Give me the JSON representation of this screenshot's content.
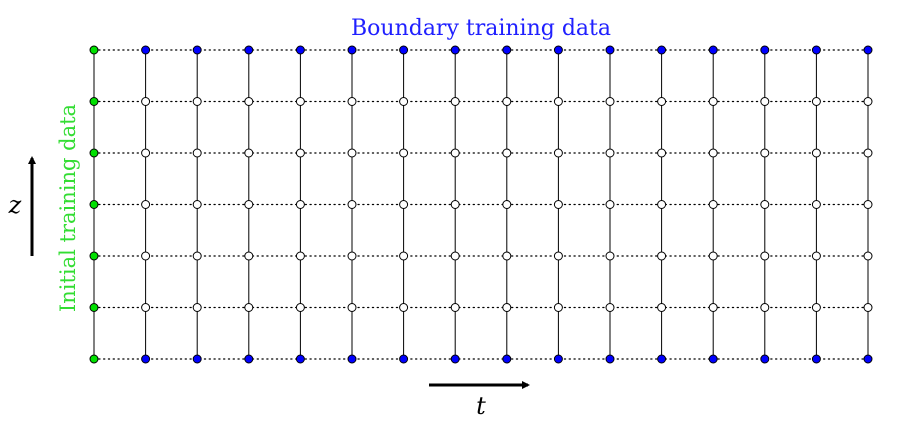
{
  "labels": {
    "boundary": "Boundary training data",
    "initial": "Initial training data",
    "x_axis": "t",
    "y_axis": "z"
  },
  "grid": {
    "columns": 16,
    "rows": 7,
    "initial_column": 0,
    "boundary_rows": [
      "top",
      "bottom"
    ]
  },
  "colors": {
    "boundary_points": "#0000ff",
    "initial_points": "#00e000",
    "interior_points": "#ffffff",
    "lines": "#000000",
    "boundary_label": "#2020ff",
    "initial_label": "#33dd33"
  }
}
